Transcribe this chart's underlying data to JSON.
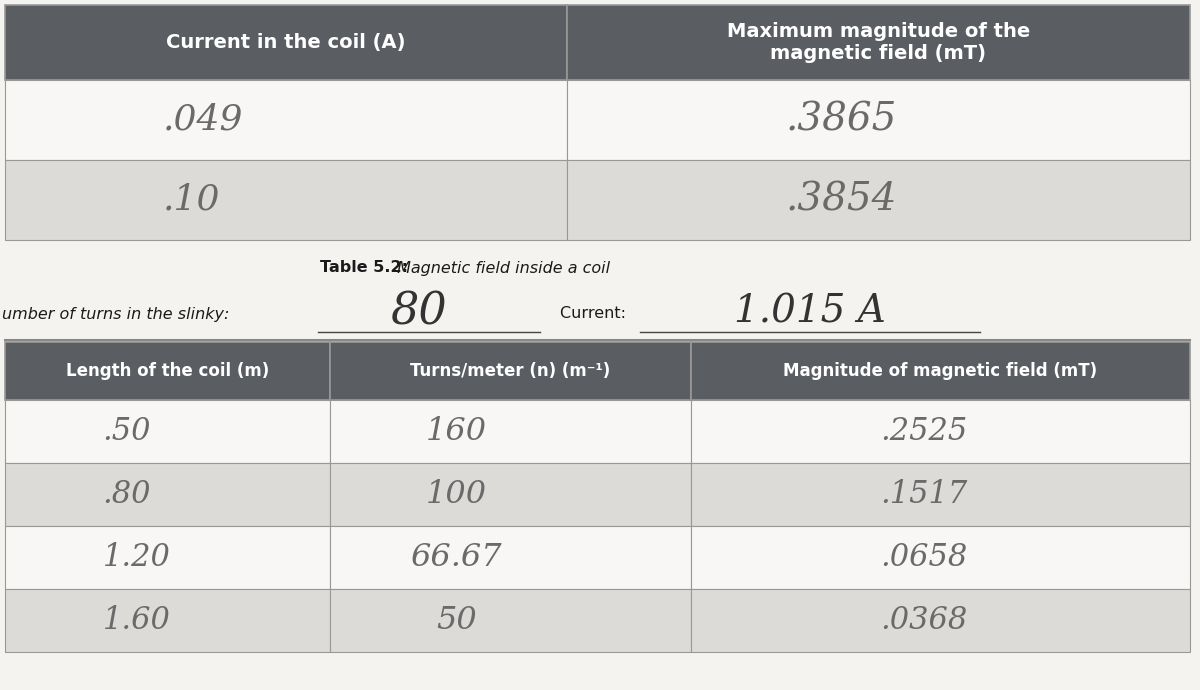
{
  "bg_color": "#f5f3f0",
  "header_dark": "#5a5e63",
  "row_white": "#f8f7f5",
  "row_gray": "#dddbd8",
  "border_color": "#999896",
  "text_handwritten": "#6a6a6a",
  "text_printed": "#1a1a1a",
  "table1": {
    "col1_header": "Current in the coil (A)",
    "col2_header": "Maximum magnitude of the\nmagnetic field (mT)",
    "rows": [
      [
        ".049",
        ".3865"
      ],
      [
        ".10",
        ".3854"
      ]
    ]
  },
  "caption_bold": "Table 5.2:",
  "caption_italic": " Magnetic field inside a coil",
  "label_turns": "umber of turns in the slinky: ",
  "turns_value": "80",
  "label_current": "Current: ",
  "current_value": "1.015 A",
  "table2": {
    "col1_header": "Length of the coil (m)",
    "col2_header": "Turns/meter (n) (m⁻¹)",
    "col3_header": "Magnitude of magnetic field (mT)",
    "rows": [
      [
        ".50",
        "160",
        ".2525"
      ],
      [
        ".80",
        "100",
        ".1517"
      ],
      [
        "1.20",
        "66.67",
        ".0658"
      ],
      [
        "1.60",
        "50",
        ".0368"
      ]
    ]
  }
}
